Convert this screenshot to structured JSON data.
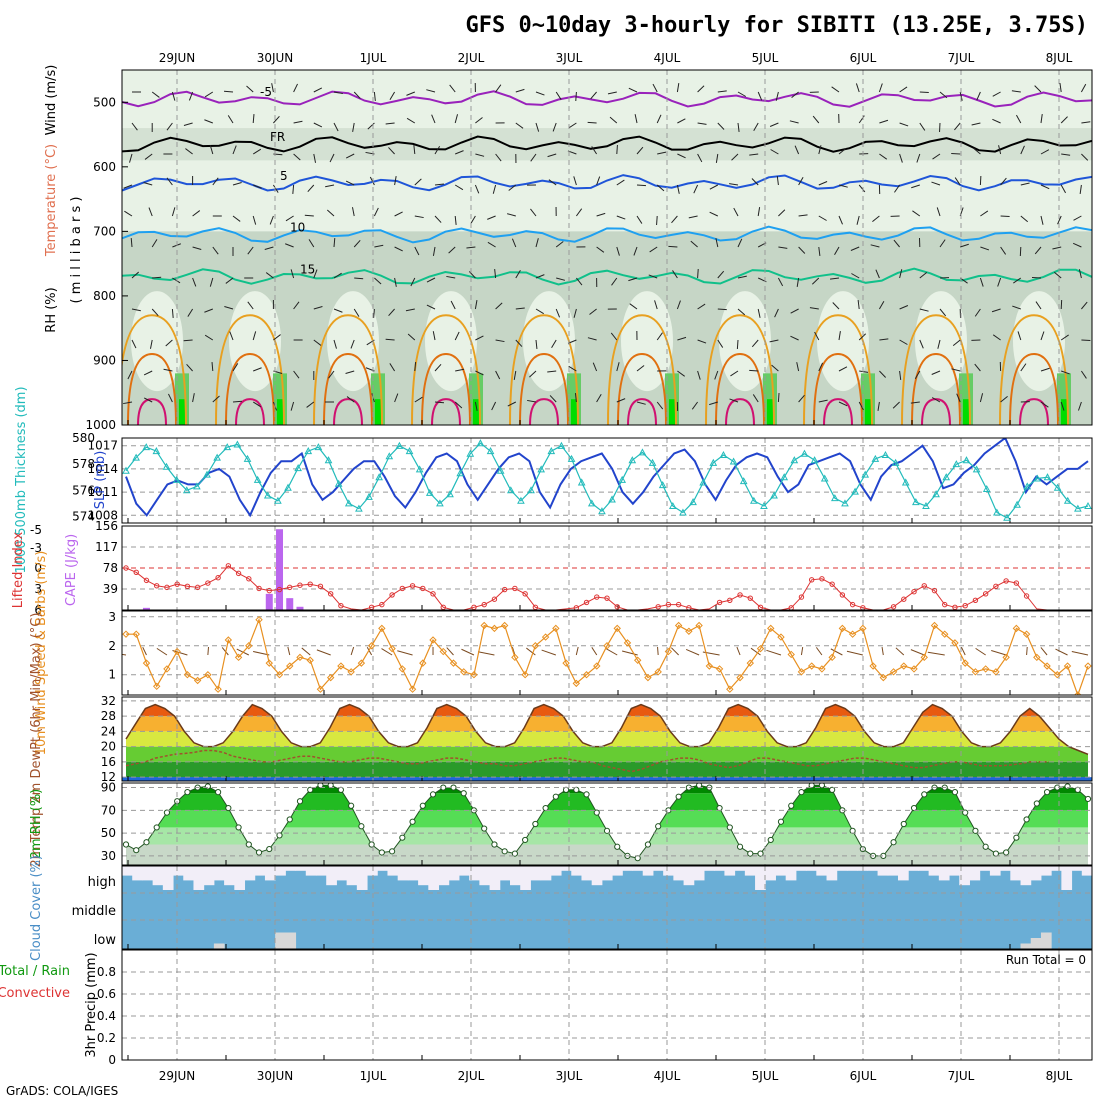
{
  "title": "GFS 0~10day 3-hourly for SIBITI (13.25E, 3.75S)",
  "footer": "GrADS: COLA/IGES",
  "run_total": "Run Total = 0",
  "date_labels": [
    "29JUN",
    "30JUN",
    "1JUL",
    "2JUL",
    "3JUL",
    "4JUL",
    "5JUL",
    "6JUL",
    "7JUL",
    "8JUL"
  ],
  "colors": {
    "temp_line": "#9922bb",
    "fr_line": "#000000",
    "t5": "#1f55d8",
    "t10": "#1fa0f0",
    "t15": "#10c08a",
    "t20": "#e8a020",
    "t25": "#e07010",
    "t30": "#d01070",
    "rh_light": "#e8f2e6",
    "rh_mid": "#c6d6c6",
    "rh_green": "#66cc66",
    "rh_bright": "#00dd00",
    "slp": "#2244cc",
    "thick": "#22bbbb",
    "cape": "#bb66ee",
    "li": "#dd3333",
    "wind": "#e89020",
    "barb": "#7a4a20",
    "cloud": "#6aaed6",
    "cloud_high": "#f2eef8"
  },
  "chart_data": [
    {
      "type": "heatmap",
      "panel": "upper-air",
      "ylabel_parts": [
        "RH (%)",
        "Temperature (°C)",
        "Wind (m/s)"
      ],
      "ylabel2": "( m i l l i b a r s )",
      "yticks": [
        500,
        600,
        700,
        800,
        900,
        1000
      ],
      "ylim": [
        1000,
        450
      ],
      "contours": [
        {
          "label": "-5",
          "level_mb": 495
        },
        {
          "label": "FR",
          "level_mb": 565
        },
        {
          "label": "5",
          "level_mb": 625
        },
        {
          "label": "10",
          "level_mb": 705
        },
        {
          "label": "15",
          "level_mb": 770
        }
      ]
    },
    {
      "type": "line",
      "panel": "slp-thickness",
      "ylabel_left": "1000-500mb Thickness (dm)",
      "ylabel_right": "SLP (mb)",
      "yticks_left": [
        574,
        576,
        578,
        580
      ],
      "yticks_right": [
        1008,
        1011,
        1014,
        1017
      ],
      "ylim_left": [
        573.5,
        580
      ],
      "ylim_right": [
        1007,
        1018
      ],
      "series": [
        {
          "name": "SLP (mb)",
          "axis": "right",
          "values": [
            1013,
            1009.5,
            1008,
            1010,
            1012,
            1012.5,
            1012,
            1012,
            1013.5,
            1014,
            1013,
            1010,
            1008,
            1011,
            1013.5,
            1015,
            1015,
            1016,
            1012,
            1010,
            1011,
            1012.5,
            1014,
            1015,
            1015,
            1013,
            1010.5,
            1009,
            1011,
            1013.5,
            1015.5,
            1016,
            1015,
            1012,
            1010,
            1012,
            1014,
            1015.5,
            1016,
            1015,
            1011,
            1009,
            1012,
            1014,
            1015,
            1015.5,
            1016,
            1014,
            1011,
            1009.5,
            1011,
            1013,
            1014.5,
            1016,
            1016.5,
            1015,
            1012,
            1010,
            1012.5,
            1014.5,
            1015.5,
            1016,
            1015.5,
            1013,
            1011,
            1012,
            1014.5,
            1015,
            1015.5,
            1016,
            1015,
            1012,
            1010,
            1013,
            1014.5,
            1015,
            1016,
            1017,
            1015,
            1011.5,
            1012,
            1013.5,
            1014.5,
            1016,
            1017,
            1018,
            1015,
            1011,
            1013,
            1012,
            1013,
            1014,
            1014,
            1015
          ]
        },
        {
          "name": "Thickness (dm)",
          "axis": "left",
          "values": [
            577.5,
            578.5,
            579.3,
            579,
            577.8,
            576.8,
            576,
            576.3,
            577.2,
            578.5,
            579.3,
            579.5,
            578.4,
            576.8,
            575.6,
            575.2,
            576.2,
            577.7,
            579,
            579.3,
            578.3,
            576.5,
            575,
            574.6,
            575.5,
            577,
            578.6,
            579.4,
            579,
            577.6,
            575.8,
            575,
            575.7,
            577.3,
            578.8,
            579.6,
            579,
            577.5,
            576,
            575.2,
            576,
            577.6,
            579,
            579.4,
            578.4,
            576.6,
            575,
            574.4,
            575.3,
            576.8,
            578.3,
            578.9,
            578.1,
            576.4,
            574.8,
            574.3,
            575.1,
            576.6,
            578.1,
            578.7,
            578.2,
            576.7,
            575.2,
            574.8,
            575.6,
            577,
            578.3,
            578.8,
            578.3,
            576.9,
            575.4,
            575,
            575.9,
            577.2,
            578.4,
            578.7,
            578.1,
            576.6,
            575.1,
            574.8,
            575.7,
            577,
            578,
            578.3,
            577.6,
            576.1,
            574.3,
            573.9,
            574.9,
            576.3,
            576.9,
            577,
            576.2,
            575.2,
            574.6,
            574.8
          ]
        }
      ]
    },
    {
      "type": "bar",
      "panel": "cape-lifted-index",
      "ylabel_left": "Lifted Index",
      "ylabel_right": "CAPE (J/kg)",
      "yticks_left": [
        "-5",
        "-3",
        "0",
        "3",
        "6"
      ],
      "yticks_right": [
        39,
        78,
        117,
        156
      ],
      "ylim_right": [
        0,
        156
      ],
      "series": [
        {
          "name": "CAPE",
          "bar_index": [
            2,
            14,
            15,
            16,
            17,
            18
          ],
          "values": [
            4,
            30,
            150,
            22,
            6,
            0
          ]
        },
        {
          "name": "Lifted Index",
          "values": [
            78,
            70,
            55,
            45,
            42,
            48,
            44,
            42,
            50,
            60,
            82,
            68,
            58,
            40,
            36,
            38,
            42,
            46,
            48,
            44,
            30,
            8,
            2,
            0,
            5,
            10,
            28,
            40,
            45,
            40,
            30,
            5,
            0,
            0,
            5,
            10,
            20,
            38,
            40,
            30,
            5,
            0,
            0,
            2,
            4,
            14,
            24,
            22,
            6,
            0,
            0,
            2,
            6,
            10,
            10,
            4,
            0,
            2,
            14,
            18,
            28,
            22,
            5,
            0,
            0,
            4,
            24,
            56,
            58,
            48,
            28,
            10,
            4,
            0,
            0,
            6,
            20,
            34,
            45,
            36,
            10,
            5,
            8,
            18,
            30,
            44,
            54,
            50,
            26,
            2,
            0,
            0,
            0,
            0,
            0
          ]
        }
      ]
    },
    {
      "type": "line",
      "panel": "10m-wind",
      "ylabel": "10m Wind Speed & Barbs (m/s)",
      "yticks": [
        1,
        2,
        3
      ],
      "ylim": [
        0.3,
        3.2
      ],
      "values": [
        2.4,
        2.4,
        1.4,
        0.6,
        1.2,
        1.8,
        1.0,
        0.8,
        1.0,
        0.5,
        2.2,
        1.6,
        2.0,
        2.9,
        1.4,
        1.0,
        1.3,
        1.6,
        1.5,
        0.5,
        0.9,
        1.3,
        1.1,
        1.4,
        2.0,
        2.6,
        1.9,
        1.2,
        0.5,
        1.4,
        2.2,
        1.8,
        1.4,
        1.1,
        1.0,
        2.7,
        2.6,
        2.7,
        1.6,
        1.0,
        2.0,
        2.3,
        2.6,
        1.4,
        0.7,
        1.0,
        1.3,
        2.0,
        2.6,
        2.1,
        1.5,
        0.9,
        1.1,
        1.8,
        2.7,
        2.5,
        2.7,
        1.3,
        1.2,
        0.5,
        0.9,
        1.4,
        1.9,
        2.6,
        2.3,
        1.7,
        1.1,
        1.3,
        1.2,
        1.6,
        2.6,
        2.4,
        2.6,
        1.3,
        0.9,
        1.1,
        1.3,
        1.2,
        1.6,
        2.7,
        2.4,
        2.1,
        1.4,
        1.1,
        1.2,
        1.1,
        1.6,
        2.6,
        2.4,
        1.6,
        1.3,
        1.0,
        1.3,
        0.3,
        1.3
      ]
    },
    {
      "type": "area",
      "panel": "2m-temp",
      "ylabel": "2m Temp 2m DewPt (6hr Min/Max) (°C)",
      "yticks": [
        12,
        16,
        20,
        24,
        28,
        32
      ],
      "ylim": [
        11,
        33
      ],
      "series": [
        {
          "name": "2m Temp",
          "values": [
            22,
            26,
            30,
            31,
            30,
            28,
            24,
            21,
            20,
            20,
            21,
            24,
            28,
            31,
            30,
            28,
            24,
            21,
            20,
            20,
            21,
            25,
            30,
            31,
            30,
            28,
            24,
            21,
            20,
            20,
            21,
            25,
            30,
            31,
            30,
            28,
            24,
            21,
            20,
            20,
            21,
            25,
            30,
            31,
            30,
            28,
            24,
            21,
            20,
            20,
            21,
            25,
            30,
            31,
            30,
            28,
            24,
            21,
            20,
            20,
            21,
            25,
            30,
            31,
            30,
            28,
            24,
            21,
            20,
            20,
            21,
            25,
            30,
            31,
            30,
            28,
            24,
            21,
            20,
            20,
            21,
            25,
            29,
            31,
            30,
            28,
            24,
            21,
            20,
            20,
            21,
            24,
            28,
            30,
            28,
            25,
            22,
            20,
            19,
            18
          ]
        },
        {
          "name": "2m DewPt",
          "values": [
            15,
            15.5,
            16,
            17,
            17.5,
            18,
            18.2,
            18.5,
            19,
            19,
            18.5,
            17.5,
            17,
            16.5,
            16,
            16,
            16.5,
            17,
            17.5,
            17.5,
            17,
            16.5,
            16,
            16,
            16.5,
            17,
            17,
            16.5,
            16,
            15.5,
            15.5,
            16,
            16.5,
            17,
            17,
            16.5,
            16,
            15.5,
            15.5,
            15,
            15,
            15.5,
            16,
            16.5,
            17,
            17,
            16.5,
            16,
            16,
            15,
            14.5,
            14,
            13.5,
            14,
            15,
            16,
            16.5,
            17,
            17,
            16.5,
            15.5,
            15,
            14.5,
            15,
            16,
            17,
            17,
            16.5,
            16,
            15.5,
            15,
            15,
            15.5,
            16,
            16.5,
            17,
            17,
            16.5,
            16,
            15.5,
            15,
            14.5,
            14.5,
            15,
            15.5,
            16,
            16,
            15.5,
            15,
            15,
            15,
            15.2,
            15.5,
            16,
            16,
            16
          ]
        }
      ]
    },
    {
      "type": "area",
      "panel": "2m-rh",
      "ylabel": "2m RH (%)",
      "yticks": [
        30,
        50,
        70,
        90
      ],
      "ylim": [
        22,
        94
      ],
      "values": [
        40,
        35,
        42,
        55,
        68,
        78,
        86,
        90,
        91,
        86,
        72,
        55,
        40,
        33,
        36,
        48,
        62,
        78,
        88,
        92,
        92,
        88,
        74,
        56,
        40,
        33,
        34,
        46,
        60,
        74,
        84,
        90,
        90,
        85,
        70,
        54,
        40,
        34,
        32,
        44,
        58,
        72,
        82,
        88,
        88,
        84,
        68,
        52,
        38,
        30,
        28,
        40,
        56,
        70,
        82,
        90,
        92,
        90,
        72,
        55,
        38,
        32,
        32,
        44,
        60,
        74,
        86,
        92,
        92,
        88,
        70,
        52,
        36,
        30,
        30,
        42,
        58,
        72,
        84,
        90,
        90,
        86,
        68,
        52,
        38,
        32,
        33,
        46,
        62,
        76,
        86,
        90,
        91,
        88,
        80
      ]
    },
    {
      "type": "bar",
      "panel": "cloud-cover",
      "ylabel": "Cloud Cover (%)",
      "ytick_labels": [
        "high",
        "middle",
        "low"
      ],
      "series": [
        {
          "name": "high",
          "values": [
            40,
            60,
            60,
            80,
            100,
            40,
            60,
            100,
            80,
            60,
            80,
            100,
            60,
            40,
            60,
            40,
            20,
            20,
            40,
            40,
            80,
            60,
            80,
            100,
            40,
            20,
            40,
            60,
            60,
            80,
            100,
            80,
            60,
            40,
            60,
            80,
            100,
            60,
            80,
            100,
            60,
            60,
            40,
            20,
            40,
            60,
            80,
            60,
            40,
            20,
            20,
            40,
            20,
            40,
            60,
            80,
            60,
            20,
            20,
            40,
            20,
            40,
            100,
            60,
            40,
            60,
            20,
            20,
            40,
            60,
            20,
            20,
            20,
            20,
            40,
            40,
            60,
            20,
            20,
            40,
            60,
            40,
            80,
            60,
            20,
            40,
            20,
            60,
            80,
            60,
            40,
            20,
            100,
            20,
            40
          ]
        },
        {
          "name": "low",
          "values": [
            0,
            0,
            0,
            0,
            0,
            0,
            0,
            0,
            0,
            10,
            0,
            0,
            0,
            0,
            0,
            30,
            30,
            0,
            0,
            0,
            0,
            0,
            0,
            0,
            0,
            0,
            0,
            0,
            0,
            0,
            0,
            0,
            0,
            0,
            0,
            0,
            0,
            0,
            0,
            0,
            0,
            0,
            0,
            0,
            0,
            0,
            0,
            0,
            0,
            0,
            0,
            0,
            0,
            0,
            0,
            0,
            0,
            0,
            0,
            0,
            0,
            0,
            0,
            0,
            0,
            0,
            0,
            0,
            0,
            0,
            0,
            0,
            0,
            0,
            0,
            0,
            0,
            0,
            0,
            0,
            0,
            0,
            0,
            0,
            0,
            0,
            0,
            0,
            10,
            20,
            30,
            0,
            0,
            0,
            0
          ]
        }
      ]
    },
    {
      "type": "bar",
      "panel": "precip",
      "ylabel_parts": [
        "Total / Rain",
        "Convective"
      ],
      "ylabel": "3hr Precip (mm)",
      "yticks": [
        0,
        0.2,
        0.4,
        0.6,
        0.8
      ],
      "ylim": [
        0,
        1.0
      ],
      "values": []
    }
  ]
}
